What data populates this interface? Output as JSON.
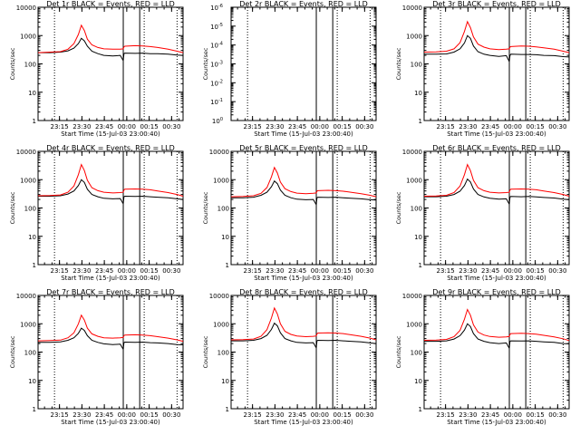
{
  "colors": {
    "events": "#000000",
    "lld": "#ff0000",
    "axis": "#000000",
    "background": "#ffffff"
  },
  "xlabel": "Start Time (15-Jul-03 23:00:40)",
  "ylabel": "Counts/sec",
  "x_ticks": [
    "23:15",
    "23:30",
    "23:45",
    "00:00",
    "00:15",
    "00:30"
  ],
  "x_tick_minutes": [
    14.33,
    29.33,
    44.33,
    59.33,
    74.33,
    89.33
  ],
  "xlim_minutes": [
    0,
    97
  ],
  "y_ticks_log": [
    "1",
    "10",
    "100",
    "1000",
    "10000"
  ],
  "y_ticks_empty": [
    "10^0",
    "10^-1",
    "10^-2",
    "10^-3",
    "10^-4",
    "10^-5",
    "10^-6"
  ],
  "chart_data": [
    {
      "type": "line",
      "title": "Det 1r BLACK = Events, RED = LLD",
      "scale": "log",
      "ylim": [
        1,
        10000
      ],
      "x": [
        0,
        8,
        15,
        20,
        24,
        27,
        29,
        31,
        33,
        36,
        40,
        44,
        50,
        55,
        57,
        57.5,
        58,
        65,
        70,
        75,
        80,
        87,
        93,
        97
      ],
      "series": [
        {
          "name": "Events",
          "values": [
            250,
            250,
            260,
            290,
            360,
            520,
            800,
            650,
            420,
            280,
            230,
            200,
            190,
            200,
            130,
            230,
            240,
            235,
            240,
            230,
            230,
            220,
            205,
            200
          ]
        },
        {
          "name": "LLD",
          "values": [
            250,
            260,
            270,
            330,
            520,
            1100,
            2300,
            1500,
            750,
            470,
            380,
            340,
            330,
            330,
            340,
            400,
            420,
            440,
            430,
            410,
            380,
            330,
            280,
            250
          ]
        }
      ],
      "lines_solid": [
        57,
        68
      ],
      "lines_dotted": [
        11,
        71,
        93
      ]
    },
    {
      "type": "line",
      "title": "Det 2r BLACK = Events, RED = LLD",
      "scale": "log",
      "ylim": [
        1e-06,
        1
      ],
      "series": [],
      "lines_solid": [
        57,
        68
      ],
      "lines_dotted": [
        11,
        71,
        93
      ]
    },
    {
      "type": "line",
      "title": "Det 3r BLACK = Events, RED = LLD",
      "scale": "log",
      "ylim": [
        1,
        10000
      ],
      "x": [
        0,
        8,
        15,
        20,
        24,
        27,
        29,
        31,
        33,
        36,
        40,
        44,
        50,
        55,
        57,
        57.5,
        58,
        65,
        70,
        75,
        80,
        87,
        93,
        97
      ],
      "series": [
        {
          "name": "Events",
          "values": [
            220,
            220,
            225,
            260,
            340,
            550,
            1000,
            800,
            430,
            270,
            220,
            200,
            185,
            195,
            120,
            200,
            220,
            215,
            215,
            210,
            200,
            195,
            180,
            175
          ]
        },
        {
          "name": "LLD",
          "values": [
            260,
            265,
            280,
            340,
            560,
            1400,
            3100,
            1900,
            900,
            500,
            390,
            340,
            320,
            330,
            340,
            390,
            410,
            430,
            420,
            400,
            370,
            330,
            280,
            250
          ]
        }
      ],
      "lines_solid": [
        57,
        68
      ],
      "lines_dotted": [
        11,
        71,
        93
      ]
    },
    {
      "type": "line",
      "title": "Det 4r BLACK = Events, RED = LLD",
      "scale": "log",
      "ylim": [
        1,
        10000
      ],
      "x": [
        0,
        8,
        15,
        20,
        24,
        27,
        29,
        31,
        33,
        36,
        40,
        44,
        50,
        55,
        57,
        57.5,
        58,
        65,
        70,
        75,
        80,
        87,
        93,
        97
      ],
      "series": [
        {
          "name": "Events",
          "values": [
            260,
            260,
            270,
            310,
            400,
            620,
            1000,
            800,
            460,
            300,
            250,
            220,
            210,
            215,
            140,
            250,
            260,
            255,
            260,
            250,
            240,
            230,
            210,
            200
          ]
        },
        {
          "name": "LLD",
          "values": [
            270,
            275,
            290,
            360,
            600,
            1500,
            3400,
            2100,
            950,
            520,
            410,
            360,
            340,
            350,
            360,
            430,
            460,
            470,
            460,
            440,
            400,
            350,
            300,
            260
          ]
        }
      ],
      "lines_solid": [
        57,
        68
      ],
      "lines_dotted": [
        11,
        71,
        93
      ]
    },
    {
      "type": "line",
      "title": "Det 5r BLACK = Events, RED = LLD",
      "scale": "log",
      "ylim": [
        1,
        10000
      ],
      "x": [
        0,
        8,
        15,
        20,
        24,
        27,
        29,
        31,
        33,
        36,
        40,
        44,
        50,
        55,
        57,
        57.5,
        58,
        65,
        70,
        75,
        80,
        87,
        93,
        97
      ],
      "series": [
        {
          "name": "Events",
          "values": [
            230,
            230,
            240,
            280,
            360,
            560,
            900,
            720,
            430,
            280,
            230,
            205,
            195,
            200,
            130,
            230,
            240,
            235,
            240,
            230,
            220,
            210,
            195,
            190
          ]
        },
        {
          "name": "LLD",
          "values": [
            250,
            255,
            270,
            330,
            530,
            1250,
            2700,
            1700,
            820,
            480,
            380,
            335,
            320,
            330,
            340,
            390,
            410,
            420,
            410,
            390,
            360,
            320,
            280,
            250
          ]
        }
      ],
      "lines_solid": [
        57,
        68
      ],
      "lines_dotted": [
        11,
        71,
        93
      ]
    },
    {
      "type": "line",
      "title": "Det 6r BLACK = Events, RED = LLD",
      "scale": "log",
      "ylim": [
        1,
        10000
      ],
      "x": [
        0,
        8,
        15,
        20,
        24,
        27,
        29,
        31,
        33,
        36,
        40,
        44,
        50,
        55,
        57,
        57.5,
        58,
        65,
        70,
        75,
        80,
        87,
        93,
        97
      ],
      "series": [
        {
          "name": "Events",
          "values": [
            250,
            250,
            260,
            300,
            390,
            620,
            1050,
            830,
            470,
            300,
            245,
            220,
            205,
            210,
            135,
            245,
            255,
            250,
            255,
            245,
            235,
            225,
            205,
            195
          ]
        },
        {
          "name": "LLD",
          "values": [
            260,
            265,
            280,
            350,
            590,
            1500,
            3400,
            2100,
            950,
            520,
            410,
            360,
            340,
            350,
            360,
            430,
            460,
            470,
            460,
            440,
            400,
            350,
            300,
            260
          ]
        }
      ],
      "lines_solid": [
        57,
        68
      ],
      "lines_dotted": [
        11,
        71,
        93
      ]
    },
    {
      "type": "line",
      "title": "Det 7r BLACK = Events, RED = LLD",
      "scale": "log",
      "ylim": [
        1,
        10000
      ],
      "x": [
        0,
        8,
        15,
        20,
        24,
        27,
        29,
        31,
        33,
        36,
        40,
        44,
        50,
        55,
        57,
        57.5,
        58,
        65,
        70,
        75,
        80,
        87,
        93,
        97
      ],
      "series": [
        {
          "name": "Events",
          "values": [
            220,
            220,
            230,
            260,
            320,
            460,
            700,
            580,
            380,
            260,
            220,
            195,
            185,
            190,
            125,
            215,
            225,
            220,
            225,
            215,
            210,
            200,
            185,
            180
          ]
        },
        {
          "name": "LLD",
          "values": [
            250,
            255,
            265,
            320,
            480,
            1000,
            2000,
            1350,
            700,
            440,
            360,
            320,
            310,
            320,
            330,
            380,
            400,
            410,
            400,
            380,
            350,
            310,
            270,
            240
          ]
        }
      ],
      "lines_solid": [
        57,
        68
      ],
      "lines_dotted": [
        11,
        71,
        93
      ]
    },
    {
      "type": "line",
      "title": "Det 8r BLACK = Events, RED = LLD",
      "scale": "log",
      "ylim": [
        1,
        10000
      ],
      "x": [
        0,
        8,
        15,
        20,
        24,
        27,
        29,
        31,
        33,
        36,
        40,
        44,
        50,
        55,
        57,
        57.5,
        58,
        65,
        70,
        75,
        80,
        87,
        93,
        97
      ],
      "series": [
        {
          "name": "Events",
          "values": [
            250,
            250,
            260,
            300,
            390,
            630,
            1050,
            840,
            480,
            300,
            250,
            220,
            210,
            215,
            140,
            250,
            260,
            255,
            260,
            250,
            240,
            230,
            210,
            200
          ]
        },
        {
          "name": "LLD",
          "values": [
            270,
            275,
            290,
            360,
            620,
            1600,
            3600,
            2200,
            1000,
            540,
            420,
            370,
            350,
            360,
            370,
            440,
            470,
            480,
            470,
            450,
            410,
            360,
            310,
            270
          ]
        }
      ],
      "lines_solid": [
        57,
        68
      ],
      "lines_dotted": [
        11,
        71,
        93
      ]
    },
    {
      "type": "line",
      "title": "Det 9r BLACK = Events, RED = LLD",
      "scale": "log",
      "ylim": [
        1,
        10000
      ],
      "x": [
        0,
        8,
        15,
        20,
        24,
        27,
        29,
        31,
        33,
        36,
        40,
        44,
        50,
        55,
        57,
        57.5,
        58,
        65,
        70,
        75,
        80,
        87,
        93,
        97
      ],
      "series": [
        {
          "name": "Events",
          "values": [
            240,
            240,
            250,
            290,
            380,
            600,
            1000,
            800,
            450,
            290,
            240,
            215,
            200,
            210,
            135,
            240,
            250,
            245,
            250,
            240,
            230,
            220,
            200,
            195
          ]
        },
        {
          "name": "LLD",
          "values": [
            260,
            265,
            280,
            350,
            580,
            1450,
            3200,
            2000,
            920,
            510,
            400,
            355,
            335,
            345,
            355,
            420,
            450,
            460,
            450,
            430,
            390,
            345,
            295,
            255
          ]
        }
      ],
      "lines_solid": [
        57,
        68
      ],
      "lines_dotted": [
        11,
        71,
        93
      ]
    }
  ]
}
